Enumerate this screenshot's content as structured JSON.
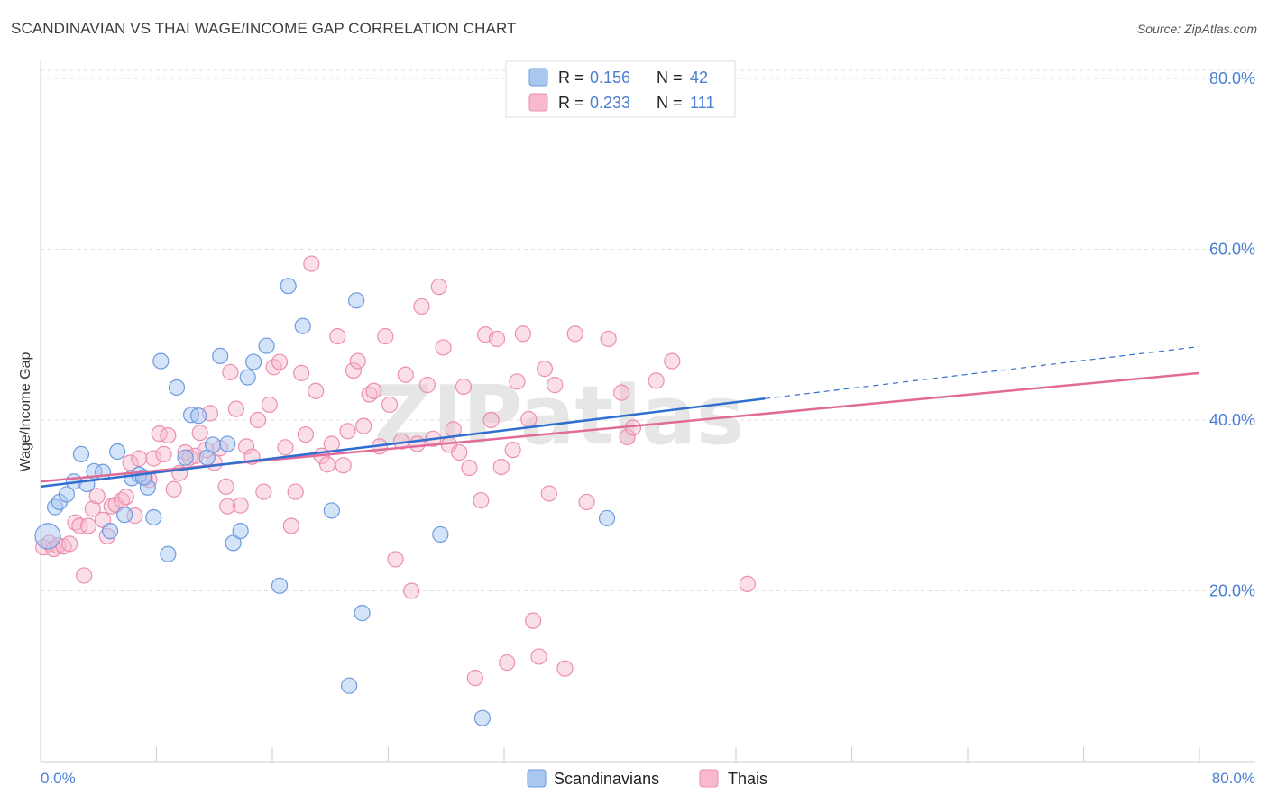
{
  "header": {
    "title": "SCANDINAVIAN VS THAI WAGE/INCOME GAP CORRELATION CHART",
    "source": "Source: ZipAtlas.com"
  },
  "watermark": "ZIPatlas",
  "colors": {
    "scandinavians_fill": "#a9c8f0",
    "scandinavians_stroke": "#6c9be0",
    "scandinavians_line": "#2f6fd0",
    "thais_fill": "#f7b9cc",
    "thais_stroke": "#ec8fae",
    "thais_line": "#e06b98",
    "axis_label": "#4a7fd4"
  },
  "legend": {
    "rows": [
      {
        "r_label": "R = ",
        "r_value": "0.156",
        "n_label": "N = ",
        "n_value": "42"
      },
      {
        "r_label": "R = ",
        "r_value": "0.233",
        "n_label": "N = ",
        "n_value": "111"
      }
    ]
  },
  "chart_data": {
    "type": "scatter",
    "title": "SCANDINAVIAN VS THAI WAGE/INCOME GAP CORRELATION CHART",
    "xlabel": "",
    "ylabel": "Wage/Income Gap",
    "xlim": [
      0,
      80
    ],
    "ylim": [
      0,
      82
    ],
    "x_tick_labels": [
      "0.0%",
      "80.0%"
    ],
    "y_ticks": [
      20,
      40,
      60,
      80
    ],
    "y_tick_labels": [
      "20.0%",
      "40.0%",
      "60.0%",
      "80.0%"
    ],
    "grid": "horizontal dashed",
    "legend_position": "top-center",
    "series": [
      {
        "name": "Scandinavians",
        "R": 0.156,
        "N": 42,
        "trend": {
          "x0": 0,
          "y0": 32.2,
          "x1": 50,
          "y1": 42.5,
          "dashed_to_x": 80,
          "dashed_to_y": 48.6
        },
        "points": [
          [
            0.5,
            26.4
          ],
          [
            1.0,
            29.8
          ],
          [
            1.3,
            30.4
          ],
          [
            1.8,
            31.3
          ],
          [
            2.3,
            32.8
          ],
          [
            2.8,
            36.0
          ],
          [
            3.2,
            32.5
          ],
          [
            3.7,
            34.0
          ],
          [
            4.3,
            33.9
          ],
          [
            4.8,
            27.0
          ],
          [
            5.3,
            36.3
          ],
          [
            5.8,
            28.9
          ],
          [
            6.3,
            33.2
          ],
          [
            6.8,
            33.6
          ],
          [
            7.4,
            32.1
          ],
          [
            7.8,
            28.6
          ],
          [
            8.3,
            46.9
          ],
          [
            8.8,
            24.3
          ],
          [
            9.4,
            43.8
          ],
          [
            10.0,
            35.6
          ],
          [
            10.4,
            40.6
          ],
          [
            10.9,
            40.5
          ],
          [
            11.5,
            35.6
          ],
          [
            11.9,
            37.1
          ],
          [
            12.4,
            47.5
          ],
          [
            12.9,
            37.2
          ],
          [
            13.3,
            25.6
          ],
          [
            13.8,
            27.0
          ],
          [
            14.3,
            45.0
          ],
          [
            14.7,
            46.8
          ],
          [
            15.6,
            48.7
          ],
          [
            16.5,
            20.6
          ],
          [
            17.1,
            55.7
          ],
          [
            18.1,
            51.0
          ],
          [
            20.1,
            29.4
          ],
          [
            21.8,
            54.0
          ],
          [
            22.2,
            17.4
          ],
          [
            21.3,
            8.9
          ],
          [
            27.6,
            26.6
          ],
          [
            30.5,
            5.1
          ],
          [
            39.1,
            28.5
          ],
          [
            7.1,
            33.3
          ]
        ]
      },
      {
        "name": "Thais",
        "R": 0.233,
        "N": 111,
        "trend": {
          "x0": 0,
          "y0": 32.8,
          "x1": 80,
          "y1": 45.5
        },
        "points": [
          [
            0.2,
            25.1
          ],
          [
            0.6,
            25.6
          ],
          [
            0.9,
            24.9
          ],
          [
            1.2,
            25.3
          ],
          [
            1.6,
            25.2
          ],
          [
            2.0,
            25.5
          ],
          [
            2.4,
            28.0
          ],
          [
            2.7,
            27.6
          ],
          [
            3.0,
            21.8
          ],
          [
            3.3,
            27.6
          ],
          [
            3.6,
            29.6
          ],
          [
            3.9,
            31.1
          ],
          [
            4.3,
            28.3
          ],
          [
            4.6,
            26.4
          ],
          [
            4.9,
            29.9
          ],
          [
            5.2,
            30.1
          ],
          [
            5.6,
            30.6
          ],
          [
            5.9,
            31.0
          ],
          [
            6.2,
            35.0
          ],
          [
            6.5,
            28.8
          ],
          [
            6.8,
            35.5
          ],
          [
            7.2,
            33.2
          ],
          [
            7.5,
            33.0
          ],
          [
            7.8,
            35.5
          ],
          [
            8.2,
            38.4
          ],
          [
            8.5,
            36.0
          ],
          [
            8.8,
            38.2
          ],
          [
            9.2,
            31.9
          ],
          [
            9.6,
            33.8
          ],
          [
            10.0,
            36.2
          ],
          [
            10.3,
            35.6
          ],
          [
            10.7,
            35.8
          ],
          [
            11.0,
            38.5
          ],
          [
            11.4,
            36.5
          ],
          [
            11.7,
            40.8
          ],
          [
            12.0,
            35.0
          ],
          [
            12.4,
            36.7
          ],
          [
            12.8,
            32.2
          ],
          [
            13.1,
            45.6
          ],
          [
            13.5,
            41.3
          ],
          [
            13.8,
            30.0
          ],
          [
            14.2,
            36.9
          ],
          [
            14.6,
            35.7
          ],
          [
            15.0,
            40.0
          ],
          [
            15.4,
            31.6
          ],
          [
            15.8,
            41.8
          ],
          [
            16.1,
            46.2
          ],
          [
            16.5,
            46.8
          ],
          [
            16.9,
            36.8
          ],
          [
            17.3,
            27.6
          ],
          [
            17.6,
            31.6
          ],
          [
            18.0,
            45.5
          ],
          [
            18.3,
            38.3
          ],
          [
            18.7,
            58.3
          ],
          [
            19.0,
            43.4
          ],
          [
            19.4,
            35.8
          ],
          [
            19.8,
            34.8
          ],
          [
            20.1,
            37.2
          ],
          [
            20.5,
            49.8
          ],
          [
            20.9,
            34.7
          ],
          [
            21.2,
            38.7
          ],
          [
            21.6,
            45.8
          ],
          [
            21.9,
            46.9
          ],
          [
            22.3,
            39.3
          ],
          [
            22.7,
            43.0
          ],
          [
            23.0,
            43.4
          ],
          [
            23.4,
            36.9
          ],
          [
            23.8,
            49.8
          ],
          [
            24.1,
            41.8
          ],
          [
            24.5,
            23.7
          ],
          [
            24.9,
            37.5
          ],
          [
            25.2,
            45.3
          ],
          [
            25.6,
            20.0
          ],
          [
            26.0,
            37.2
          ],
          [
            26.3,
            53.3
          ],
          [
            26.7,
            44.1
          ],
          [
            27.1,
            37.8
          ],
          [
            27.5,
            55.6
          ],
          [
            27.8,
            48.5
          ],
          [
            28.2,
            37.1
          ],
          [
            28.5,
            38.9
          ],
          [
            28.9,
            36.2
          ],
          [
            29.2,
            43.9
          ],
          [
            29.6,
            34.4
          ],
          [
            30.0,
            9.8
          ],
          [
            30.4,
            30.6
          ],
          [
            30.7,
            50.0
          ],
          [
            31.1,
            40.0
          ],
          [
            31.5,
            49.5
          ],
          [
            31.8,
            34.5
          ],
          [
            32.2,
            11.6
          ],
          [
            32.6,
            36.5
          ],
          [
            32.9,
            44.5
          ],
          [
            33.3,
            50.1
          ],
          [
            33.7,
            40.1
          ],
          [
            34.0,
            16.5
          ],
          [
            34.4,
            12.3
          ],
          [
            34.8,
            46.0
          ],
          [
            35.1,
            31.4
          ],
          [
            35.5,
            44.1
          ],
          [
            36.2,
            10.9
          ],
          [
            36.9,
            50.1
          ],
          [
            37.7,
            30.4
          ],
          [
            39.2,
            49.5
          ],
          [
            40.1,
            43.2
          ],
          [
            40.5,
            38.0
          ],
          [
            40.9,
            39.1
          ],
          [
            42.5,
            44.6
          ],
          [
            43.6,
            46.9
          ],
          [
            48.8,
            20.8
          ],
          [
            12.9,
            29.9
          ]
        ]
      }
    ]
  },
  "bottom_legend": {
    "items": [
      {
        "label": "Scandinavians"
      },
      {
        "label": "Thais"
      }
    ]
  }
}
